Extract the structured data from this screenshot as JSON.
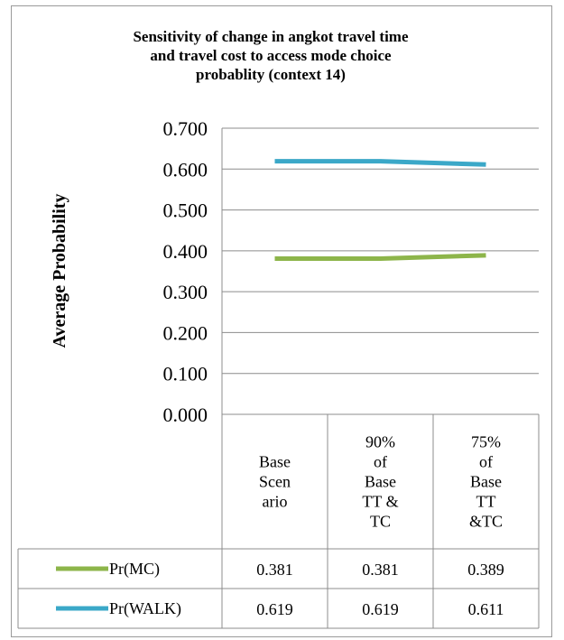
{
  "chart_data": {
    "type": "line",
    "title": "Sensitivity of change in angkot travel time and travel cost to  access mode choice probablity  (context 14)",
    "title_lines": [
      "Sensitivity of change in angkot travel time",
      "and travel cost to  access mode choice",
      "probablity  (context 14)"
    ],
    "ylabel": "Average Probability",
    "ylim": [
      0,
      0.7
    ],
    "yticks": [
      "0.000",
      "0.100",
      "0.200",
      "0.300",
      "0.400",
      "0.500",
      "0.600",
      "0.700"
    ],
    "grid": true,
    "legend": "data-table",
    "categories": [
      "Base Scenario",
      "90% of Base TT & TC",
      "75% of Base TT &TC"
    ],
    "category_lines": [
      [
        "Base",
        "Scen",
        "ario"
      ],
      [
        "90%",
        "of",
        "Base",
        "TT &",
        "TC"
      ],
      [
        "75%",
        "of",
        "Base",
        "TT",
        "&TC"
      ]
    ],
    "series": [
      {
        "name": "Pr(MC)",
        "color": "#8db54a",
        "values": [
          0.381,
          0.381,
          0.389
        ],
        "labels": [
          "0.381",
          "0.381",
          "0.389"
        ]
      },
      {
        "name": "Pr(WALK)",
        "color": "#3ba8c8",
        "values": [
          0.619,
          0.619,
          0.611
        ],
        "labels": [
          "0.619",
          "0.619",
          "0.611"
        ]
      }
    ]
  }
}
